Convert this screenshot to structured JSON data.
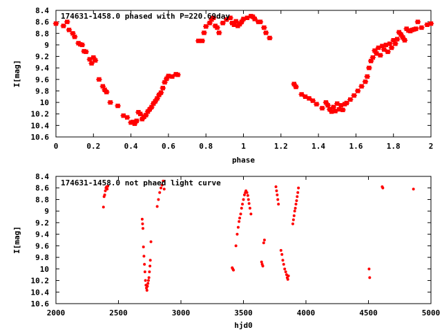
{
  "chart_data": [
    {
      "type": "scatter",
      "title": "174631-1458.0 phased with P=220.69day",
      "xlabel": "phase",
      "ylabel": "I[mag]",
      "xlim": [
        0,
        2
      ],
      "ylim": [
        10.6,
        8.4
      ],
      "y_inverted": true,
      "marker_color": "#ff0000",
      "grid": false,
      "xticks": [
        "0",
        "0.2",
        "0.4",
        "0.6",
        "0.8",
        "1",
        "1.2",
        "1.4",
        "1.6",
        "1.8",
        "2"
      ],
      "yticks": [
        "8.4",
        "8.6",
        "8.8",
        "9",
        "9.2",
        "9.4",
        "9.6",
        "9.8",
        "10",
        "10.2",
        "10.4",
        "10.6"
      ],
      "points": [
        [
          0.0,
          8.63
        ],
        [
          0.04,
          8.67
        ],
        [
          0.06,
          8.6
        ],
        [
          0.07,
          8.74
        ],
        [
          0.09,
          8.8
        ],
        [
          0.1,
          8.86
        ],
        [
          0.12,
          8.97
        ],
        [
          0.13,
          8.99
        ],
        [
          0.14,
          9.0
        ],
        [
          0.15,
          9.11
        ],
        [
          0.16,
          9.12
        ],
        [
          0.18,
          9.25
        ],
        [
          0.19,
          9.32
        ],
        [
          0.2,
          9.22
        ],
        [
          0.21,
          9.27
        ],
        [
          0.23,
          9.6
        ],
        [
          0.25,
          9.72
        ],
        [
          0.26,
          9.78
        ],
        [
          0.27,
          9.82
        ],
        [
          0.29,
          10.0
        ],
        [
          0.33,
          10.06
        ],
        [
          0.36,
          10.23
        ],
        [
          0.38,
          10.26
        ],
        [
          0.4,
          10.35
        ],
        [
          0.41,
          10.34
        ],
        [
          0.42,
          10.37
        ],
        [
          0.43,
          10.32
        ],
        [
          0.44,
          10.17
        ],
        [
          0.45,
          10.2
        ],
        [
          0.46,
          10.29
        ],
        [
          0.47,
          10.25
        ],
        [
          0.48,
          10.22
        ],
        [
          0.49,
          10.16
        ],
        [
          0.5,
          10.12
        ],
        [
          0.51,
          10.08
        ],
        [
          0.52,
          10.02
        ],
        [
          0.53,
          9.98
        ],
        [
          0.54,
          9.93
        ],
        [
          0.55,
          9.87
        ],
        [
          0.56,
          9.83
        ],
        [
          0.57,
          9.75
        ],
        [
          0.58,
          9.65
        ],
        [
          0.59,
          9.59
        ],
        [
          0.6,
          9.54
        ],
        [
          0.62,
          9.55
        ],
        [
          0.64,
          9.51
        ],
        [
          0.65,
          9.52
        ],
        [
          0.76,
          8.93
        ],
        [
          0.78,
          8.93
        ],
        [
          0.79,
          8.79
        ],
        [
          0.8,
          8.68
        ],
        [
          0.82,
          8.62
        ],
        [
          0.83,
          8.56
        ],
        [
          0.84,
          8.53
        ],
        [
          0.85,
          8.67
        ],
        [
          0.86,
          8.7
        ],
        [
          0.87,
          8.79
        ],
        [
          0.89,
          8.62
        ],
        [
          0.91,
          8.56
        ],
        [
          0.93,
          8.53
        ],
        [
          0.94,
          8.62
        ],
        [
          0.95,
          8.65
        ],
        [
          0.96,
          8.59
        ],
        [
          0.97,
          8.67
        ],
        [
          0.98,
          8.64
        ],
        [
          0.99,
          8.6
        ],
        [
          1.0,
          8.55
        ],
        [
          1.02,
          8.53
        ],
        [
          1.04,
          8.5
        ],
        [
          1.05,
          8.51
        ],
        [
          1.06,
          8.55
        ],
        [
          1.08,
          8.6
        ],
        [
          1.09,
          8.6
        ],
        [
          1.11,
          8.7
        ],
        [
          1.12,
          8.79
        ],
        [
          1.14,
          8.88
        ],
        [
          1.27,
          9.68
        ],
        [
          1.28,
          9.73
        ],
        [
          1.31,
          9.86
        ],
        [
          1.33,
          9.9
        ],
        [
          1.35,
          9.93
        ],
        [
          1.37,
          9.97
        ],
        [
          1.39,
          10.03
        ],
        [
          1.42,
          10.1
        ],
        [
          1.44,
          10.0
        ],
        [
          1.45,
          10.05
        ],
        [
          1.46,
          10.12
        ],
        [
          1.47,
          10.16
        ],
        [
          1.48,
          10.08
        ],
        [
          1.49,
          10.15
        ],
        [
          1.5,
          10.02
        ],
        [
          1.51,
          10.12
        ],
        [
          1.52,
          10.05
        ],
        [
          1.53,
          10.13
        ],
        [
          1.54,
          10.03
        ],
        [
          1.55,
          10.01
        ],
        [
          1.57,
          9.95
        ],
        [
          1.59,
          9.88
        ],
        [
          1.61,
          9.8
        ],
        [
          1.63,
          9.72
        ],
        [
          1.65,
          9.64
        ],
        [
          1.66,
          9.55
        ],
        [
          1.67,
          9.4
        ],
        [
          1.68,
          9.28
        ],
        [
          1.69,
          9.22
        ],
        [
          1.7,
          9.1
        ],
        [
          1.71,
          9.15
        ],
        [
          1.72,
          9.05
        ],
        [
          1.73,
          9.18
        ],
        [
          1.74,
          9.02
        ],
        [
          1.75,
          9.08
        ],
        [
          1.76,
          9.0
        ],
        [
          1.77,
          9.12
        ],
        [
          1.78,
          8.98
        ],
        [
          1.79,
          9.05
        ],
        [
          1.8,
          8.92
        ],
        [
          1.81,
          8.98
        ],
        [
          1.82,
          8.9
        ],
        [
          1.83,
          8.78
        ],
        [
          1.84,
          8.82
        ],
        [
          1.85,
          8.87
        ],
        [
          1.86,
          8.92
        ],
        [
          1.87,
          8.72
        ],
        [
          1.88,
          8.75
        ],
        [
          1.89,
          8.76
        ],
        [
          1.9,
          8.74
        ],
        [
          1.91,
          8.73
        ],
        [
          1.92,
          8.72
        ],
        [
          1.93,
          8.6
        ],
        [
          1.95,
          8.7
        ],
        [
          1.98,
          8.65
        ],
        [
          2.0,
          8.63
        ]
      ]
    },
    {
      "type": "scatter",
      "title": "174631-1458.0 not phaed light curve",
      "xlabel": "hjd0",
      "ylabel": "I[mag]",
      "xlim": [
        2000,
        5000
      ],
      "ylim": [
        10.6,
        8.4
      ],
      "y_inverted": true,
      "marker_color": "#ff0000",
      "grid": false,
      "xticks": [
        "2000",
        "2500",
        "3000",
        "3500",
        "4000",
        "4500",
        "5000"
      ],
      "yticks": [
        "8.4",
        "8.6",
        "8.8",
        "9",
        "9.2",
        "9.4",
        "9.6",
        "9.8",
        "10",
        "10.2",
        "10.4",
        "10.6"
      ],
      "points": [
        [
          2380,
          8.93
        ],
        [
          2385,
          8.75
        ],
        [
          2390,
          8.72
        ],
        [
          2395,
          8.65
        ],
        [
          2400,
          8.6
        ],
        [
          2405,
          8.58
        ],
        [
          2410,
          8.62
        ],
        [
          2415,
          8.57
        ],
        [
          2690,
          9.14
        ],
        [
          2693,
          9.22
        ],
        [
          2696,
          9.3
        ],
        [
          2700,
          9.62
        ],
        [
          2704,
          9.78
        ],
        [
          2708,
          9.92
        ],
        [
          2712,
          10.05
        ],
        [
          2716,
          10.2
        ],
        [
          2720,
          10.28
        ],
        [
          2724,
          10.33
        ],
        [
          2728,
          10.37
        ],
        [
          2732,
          10.3
        ],
        [
          2736,
          10.25
        ],
        [
          2740,
          10.2
        ],
        [
          2744,
          10.15
        ],
        [
          2748,
          10.05
        ],
        [
          2752,
          9.95
        ],
        [
          2755,
          9.85
        ],
        [
          2760,
          9.53
        ],
        [
          2810,
          8.92
        ],
        [
          2820,
          8.8
        ],
        [
          2830,
          8.68
        ],
        [
          2840,
          8.6
        ],
        [
          2850,
          8.55
        ],
        [
          2858,
          8.48
        ],
        [
          2866,
          8.62
        ],
        [
          3410,
          9.98
        ],
        [
          3415,
          10.0
        ],
        [
          3420,
          10.02
        ],
        [
          3440,
          9.6
        ],
        [
          3450,
          9.4
        ],
        [
          3458,
          9.28
        ],
        [
          3465,
          9.18
        ],
        [
          3470,
          9.12
        ],
        [
          3478,
          9.05
        ],
        [
          3485,
          8.95
        ],
        [
          3492,
          8.88
        ],
        [
          3500,
          8.8
        ],
        [
          3508,
          8.72
        ],
        [
          3515,
          8.68
        ],
        [
          3520,
          8.65
        ],
        [
          3528,
          8.68
        ],
        [
          3535,
          8.73
        ],
        [
          3540,
          8.8
        ],
        [
          3545,
          8.87
        ],
        [
          3552,
          8.95
        ],
        [
          3560,
          9.05
        ],
        [
          3645,
          9.88
        ],
        [
          3650,
          9.92
        ],
        [
          3655,
          9.95
        ],
        [
          3662,
          9.55
        ],
        [
          3668,
          9.5
        ],
        [
          3760,
          8.58
        ],
        [
          3765,
          8.65
        ],
        [
          3770,
          8.72
        ],
        [
          3775,
          8.8
        ],
        [
          3780,
          8.88
        ],
        [
          3800,
          9.68
        ],
        [
          3808,
          9.75
        ],
        [
          3815,
          9.85
        ],
        [
          3822,
          9.92
        ],
        [
          3830,
          10.0
        ],
        [
          3838,
          10.05
        ],
        [
          3845,
          10.1
        ],
        [
          3850,
          10.15
        ],
        [
          3855,
          10.18
        ],
        [
          3860,
          10.12
        ],
        [
          3895,
          9.22
        ],
        [
          3900,
          9.15
        ],
        [
          3905,
          9.08
        ],
        [
          3910,
          9.0
        ],
        [
          3915,
          8.95
        ],
        [
          3920,
          8.88
        ],
        [
          3925,
          8.82
        ],
        [
          3930,
          8.75
        ],
        [
          3935,
          8.68
        ],
        [
          3940,
          8.6
        ],
        [
          4505,
          10.0
        ],
        [
          4510,
          10.15
        ],
        [
          4610,
          8.58
        ],
        [
          4615,
          8.6
        ],
        [
          4860,
          8.62
        ]
      ]
    }
  ]
}
